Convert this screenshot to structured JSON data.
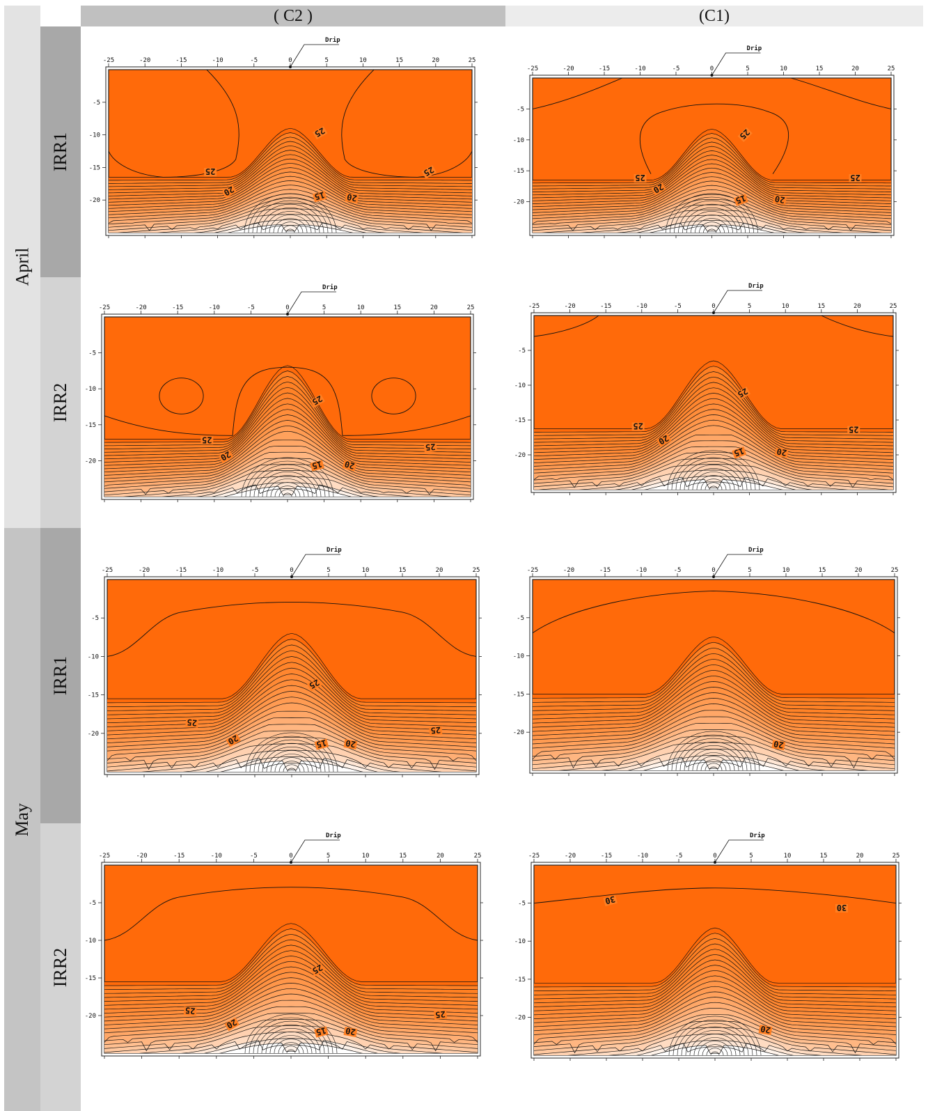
{
  "headers": {
    "c2": "( C2 )",
    "c1": "(C1)"
  },
  "months": {
    "april": "April",
    "may": "May"
  },
  "irr": {
    "irr1": "IRR1",
    "irr2": "IRR2"
  },
  "colors": {
    "deep": "#ff6a0a",
    "mid": "#ff7f22",
    "light": "#ffffff",
    "line": "#111111",
    "header_c2": "#c0c0c0",
    "header_c1": "#ececec",
    "april_bg": "#e3e3e3",
    "may_bg": "#c4c4c4",
    "irr_dark": "#a8a8a8",
    "irr_light": "#d3d3d3"
  },
  "panel_common": {
    "drip_label": "Drip",
    "x_ticks": [
      "-25",
      "-20",
      "-15",
      "-10",
      "-5",
      "0",
      "5",
      "10",
      "15",
      "20",
      "25"
    ],
    "y_ticks": [
      "-5",
      "-10",
      "-15",
      "-20"
    ]
  },
  "panels": [
    {
      "id": "april-irr1-c2",
      "labels": [
        "25",
        "25",
        "25",
        "20",
        "15",
        "20"
      ]
    },
    {
      "id": "april-irr1-c1",
      "labels": [
        "25",
        "25",
        "25",
        "20",
        "15",
        "20"
      ]
    },
    {
      "id": "april-irr2-c2",
      "labels": [
        "25",
        "25",
        "25",
        "20",
        "15",
        "20"
      ]
    },
    {
      "id": "april-irr2-c1",
      "labels": [
        "25",
        "25",
        "25",
        "20",
        "15",
        "20"
      ]
    },
    {
      "id": "may-irr1-c2",
      "labels": [
        "25",
        "25",
        "25",
        "20",
        "15",
        "20"
      ]
    },
    {
      "id": "may-irr1-c1",
      "labels": [
        "20"
      ]
    },
    {
      "id": "may-irr2-c2",
      "labels": [
        "25",
        "25",
        "25",
        "20",
        "15",
        "20"
      ]
    },
    {
      "id": "may-irr2-c1",
      "labels": [
        "30",
        "30",
        "20"
      ]
    }
  ]
}
